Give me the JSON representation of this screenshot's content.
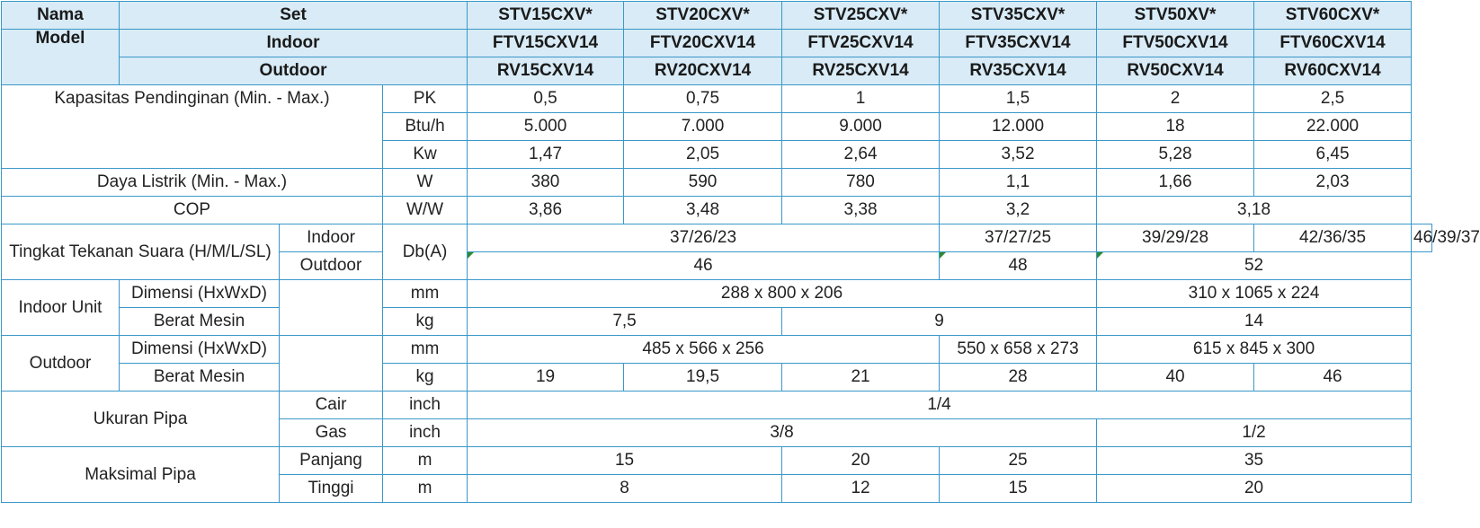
{
  "header": {
    "nama": "Nama",
    "model": "Model",
    "set": "Set",
    "indoor": "Indoor",
    "outdoor": "Outdoor",
    "set_models": [
      "STV15CXV*",
      "STV20CXV*",
      "STV25CXV*",
      "STV35CXV*",
      "STV50XV*",
      "STV60CXV*"
    ],
    "indoor_models": [
      "FTV15CXV14",
      "FTV20CXV14",
      "FTV25CXV14",
      "FTV35CXV14",
      "FTV50CXV14",
      "FTV60CXV14"
    ],
    "outdoor_models": [
      "RV15CXV14",
      "RV20CXV14",
      "RV25CXV14",
      "RV35CXV14",
      "RV50CXV14",
      "RV60CXV14"
    ]
  },
  "capacity": {
    "label": "Kapasitas Pendinginan (Min. - Max.)",
    "unit_pk": "PK",
    "unit_btu": "Btu/h",
    "unit_kw": "Kw",
    "pk": [
      "0,5",
      "0,75",
      "1",
      "1,5",
      "2",
      "2,5"
    ],
    "btu": [
      "5.000",
      "7.000",
      "9.000",
      "12.000",
      "18",
      "22.000"
    ],
    "kw": [
      "1,47",
      "2,05",
      "2,64",
      "3,52",
      "5,28",
      "6,45"
    ]
  },
  "power": {
    "label": "Daya Listrik (Min. - Max.)",
    "unit": "W",
    "values": [
      "380",
      "590",
      "780",
      "1,1",
      "1,66",
      "2,03"
    ]
  },
  "cop": {
    "label": "COP",
    "unit": "W/W",
    "values": [
      "3,86",
      "3,48",
      "3,38",
      "3,2",
      "3,18"
    ]
  },
  "sound": {
    "label": "Tingkat Tekanan Suara (H/M/L/SL)",
    "indoor_label": "Indoor",
    "outdoor_label": "Outdoor",
    "unit": "Db(A)",
    "indoor_values": [
      "37/26/23",
      "37/27/25",
      "39/29/28",
      "42/36/35",
      "46/39/37"
    ],
    "outdoor_values": [
      "46",
      "48",
      "52"
    ]
  },
  "indoor_unit": {
    "label": "Indoor Unit",
    "dim_label": "Dimensi (HxWxD)",
    "dim_unit": "mm",
    "dim_values": [
      "288 x 800 x 206",
      "310 x 1065 x 224"
    ],
    "weight_label": "Berat Mesin",
    "weight_unit": "kg",
    "weight_values": [
      "7,5",
      "9",
      "14"
    ]
  },
  "outdoor_unit": {
    "label": "Outdoor",
    "dim_label": "Dimensi (HxWxD)",
    "dim_unit": "mm",
    "dim_values": [
      "485 x 566 x 256",
      "550 x 658 x 273",
      "615 x 845 x 300"
    ],
    "weight_label": "Berat Mesin",
    "weight_unit": "kg",
    "weight_values": [
      "19",
      "19,5",
      "21",
      "28",
      "40",
      "46"
    ]
  },
  "pipe_size": {
    "label": "Ukuran Pipa",
    "cair_label": "Cair",
    "gas_label": "Gas",
    "unit": "inch",
    "cair_values": [
      "1/4"
    ],
    "gas_values": [
      "3/8",
      "1/2"
    ]
  },
  "max_pipe": {
    "label": "Maksimal Pipa",
    "length_label": "Panjang",
    "height_label": "Tinggi",
    "unit": "m",
    "length_values": [
      "15",
      "20",
      "25",
      "35"
    ],
    "height_values": [
      "8",
      "12",
      "15",
      "20"
    ]
  }
}
